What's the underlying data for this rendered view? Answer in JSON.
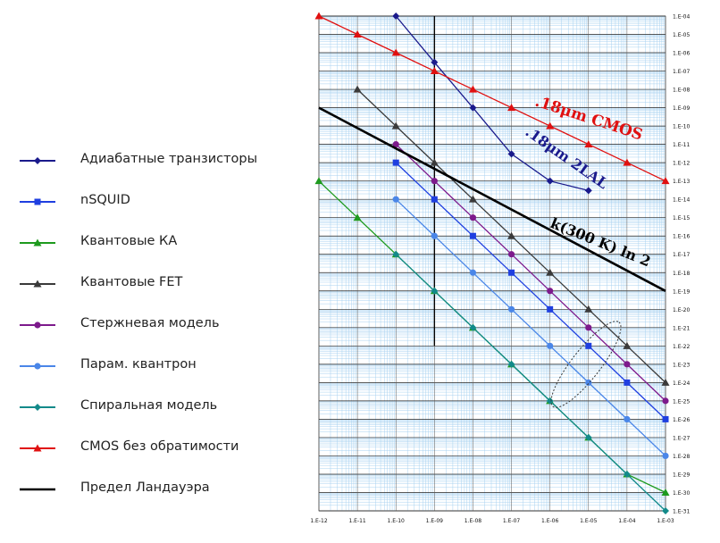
{
  "chart_data": {
    "type": "line",
    "title": "",
    "xlabel": "",
    "ylabel": "",
    "x_scale": "log",
    "y_scale": "log",
    "x_ticks": [
      "1.E-12",
      "1.E-11",
      "1.E-10",
      "1.E-09",
      "1.E-08",
      "1.E-07",
      "1.E-06",
      "1.E-05",
      "1.E-04",
      "1.E-03"
    ],
    "y_ticks": [
      "1.E-04",
      "1.E-05",
      "1.E-06",
      "1.E-07",
      "1.E-08",
      "1.E-09",
      "1.E-10",
      "1.E-11",
      "1.E-12",
      "1.E-13",
      "1.E-14",
      "1.E-15",
      "1.E-16",
      "1.E-17",
      "1.E-18",
      "1.E-19",
      "1.E-20",
      "1.E-21",
      "1.E-22",
      "1.E-23",
      "1.E-24",
      "1.E-25",
      "1.E-26",
      "1.E-27",
      "1.E-28",
      "1.E-29",
      "1.E-30",
      "1.E-31"
    ],
    "xlim": [
      1e-12,
      0.001
    ],
    "ylim": [
      1e-31,
      0.0001
    ],
    "grid": true,
    "legend_position": "left",
    "series": [
      {
        "name": "Адиабатные транзисторы",
        "color": "#1a1a8c",
        "marker": "diamond",
        "x": [
          1e-10,
          1e-09,
          1e-08,
          1e-07,
          1e-06,
          1e-05
        ],
        "y": [
          0.0001,
          3e-07,
          1e-09,
          3e-12,
          1e-13,
          3e-14
        ]
      },
      {
        "name": "nSQUID",
        "color": "#1f3fe0",
        "marker": "square",
        "x": [
          1e-10,
          1e-09,
          1e-08,
          1e-07,
          1e-06,
          1e-05,
          0.0001,
          0.001
        ],
        "y": [
          1e-12,
          1e-14,
          1e-16,
          1e-18,
          1e-20,
          1e-22,
          1e-24,
          1e-26
        ]
      },
      {
        "name": "Квантовые КА",
        "color": "#1e9a1e",
        "marker": "triangle",
        "x": [
          1e-12,
          1e-11,
          1e-10,
          1e-09,
          1e-08,
          1e-07,
          1e-06,
          1e-05,
          0.0001,
          0.001
        ],
        "y": [
          1e-13,
          1e-15,
          1e-17,
          1e-19,
          1e-21,
          1e-23,
          1e-25,
          1e-27,
          1e-29,
          1e-30
        ]
      },
      {
        "name": "Квантовые FET",
        "color": "#3a3a3a",
        "marker": "triangle",
        "x": [
          1e-11,
          1e-10,
          1e-09,
          1e-08,
          1e-07,
          1e-06,
          1e-05,
          0.0001,
          0.001
        ],
        "y": [
          1e-08,
          1e-10,
          1e-12,
          1e-14,
          1e-16,
          1e-18,
          1e-20,
          1e-22,
          1e-24
        ]
      },
      {
        "name": "Стержневая модель",
        "color": "#7d1a8c",
        "marker": "circle",
        "x": [
          1e-10,
          1e-09,
          1e-08,
          1e-07,
          1e-06,
          1e-05,
          0.0001,
          0.001
        ],
        "y": [
          1e-11,
          1e-13,
          1e-15,
          1e-17,
          1e-19,
          1e-21,
          1e-23,
          1e-25
        ]
      },
      {
        "name": "Парам. квантрон",
        "color": "#4a86e8",
        "marker": "circle",
        "x": [
          1e-10,
          1e-09,
          1e-08,
          1e-07,
          1e-06,
          1e-05,
          0.0001,
          0.001
        ],
        "y": [
          1e-14,
          1e-16,
          1e-18,
          1e-20,
          1e-22,
          1e-24,
          1e-26,
          1e-28
        ]
      },
      {
        "name": "Спиральная модель",
        "color": "#138a8a",
        "marker": "diamond",
        "x": [
          1e-10,
          1e-09,
          1e-08,
          1e-07,
          1e-06,
          1e-05,
          0.0001,
          0.001
        ],
        "y": [
          1e-17,
          1e-19,
          1e-21,
          1e-23,
          1e-25,
          1e-27,
          1e-29,
          1e-31
        ]
      },
      {
        "name": "CMOS без обратимости",
        "color": "#e01010",
        "marker": "triangle",
        "x": [
          1e-12,
          1e-11,
          1e-10,
          1e-09,
          1e-08,
          1e-07,
          1e-06,
          1e-05,
          0.0001,
          0.001
        ],
        "y": [
          0.0001,
          1e-05,
          1e-06,
          1e-07,
          1e-08,
          1e-09,
          1e-10,
          1e-11,
          1e-12,
          1e-13
        ]
      },
      {
        "name": "Предел Ландауэра",
        "color": "#000000",
        "marker": "none",
        "x": [
          1e-12,
          0.001
        ],
        "y": [
          1e-09,
          1e-19
        ]
      }
    ],
    "annotations": [
      {
        "text": ".18μm CMOS",
        "color": "#e01010"
      },
      {
        "text": ".18μm 2LAL",
        "color": "#1a1a8c"
      },
      {
        "text": "k(300 K) ln 2",
        "color": "#000000"
      }
    ]
  },
  "legend": {
    "items": [
      {
        "label": "Адиабатные транзисторы",
        "color": "#1a1a8c",
        "marker": "diamond"
      },
      {
        "label": "nSQUID",
        "color": "#1f3fe0",
        "marker": "square"
      },
      {
        "label": "Квантовые КА",
        "color": "#1e9a1e",
        "marker": "triangle"
      },
      {
        "label": "Квантовые FET",
        "color": "#3a3a3a",
        "marker": "triangle"
      },
      {
        "label": "Стержневая модель",
        "color": "#7d1a8c",
        "marker": "circle"
      },
      {
        "label": "Парам. квантрон",
        "color": "#4a86e8",
        "marker": "circle"
      },
      {
        "label": "Спиральная модель",
        "color": "#138a8a",
        "marker": "diamond"
      },
      {
        "label": "CMOS без обратимости",
        "color": "#e01010",
        "marker": "triangle"
      },
      {
        "label": "Предел Ландауэра",
        "color": "#000000",
        "marker": "none"
      }
    ]
  }
}
